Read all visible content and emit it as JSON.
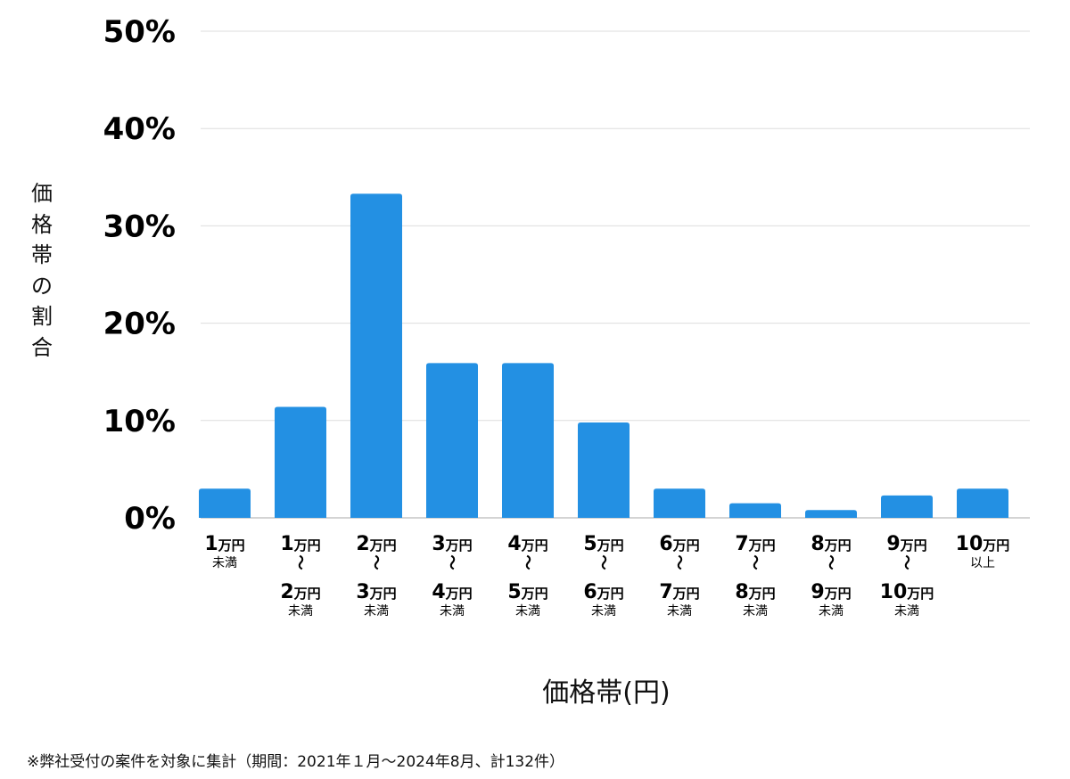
{
  "chart_data": {
    "type": "bar",
    "title": "",
    "ylabel": "価格帯の割合",
    "xlabel": "価格帯(円)",
    "ylim": [
      0,
      50
    ],
    "yticks": [
      0,
      10,
      20,
      30,
      40,
      50
    ],
    "ytick_suffix": "%",
    "grid": true,
    "unit": "万円",
    "range_mark": "〜",
    "bar_color": "#2390e3",
    "categories": [
      {
        "from": "1",
        "note": "未満"
      },
      {
        "from": "1",
        "to": "2",
        "note": "未満"
      },
      {
        "from": "2",
        "to": "3",
        "note": "未満"
      },
      {
        "from": "3",
        "to": "4",
        "note": "未満"
      },
      {
        "from": "4",
        "to": "5",
        "note": "未満"
      },
      {
        "from": "5",
        "to": "6",
        "note": "未満"
      },
      {
        "from": "6",
        "to": "7",
        "note": "未満"
      },
      {
        "from": "7",
        "to": "8",
        "note": "未満"
      },
      {
        "from": "8",
        "to": "9",
        "note": "未満"
      },
      {
        "from": "9",
        "to": "10",
        "note": "未満"
      },
      {
        "from": "10",
        "note": "以上"
      }
    ],
    "values": [
      3.0,
      11.4,
      33.3,
      15.9,
      15.9,
      9.8,
      3.0,
      1.5,
      0.8,
      2.3,
      3.0
    ]
  },
  "footnote": "※弊社受付の案件を対象に集計（期間：2021年１月〜2024年8月、計132件）"
}
